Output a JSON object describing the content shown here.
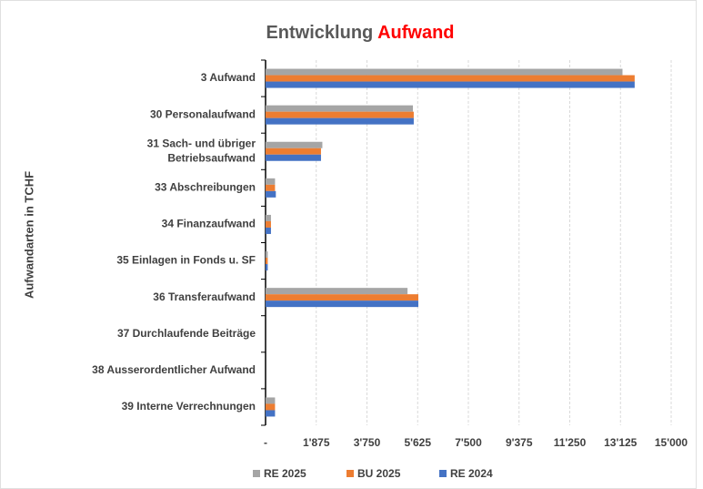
{
  "chart_data": {
    "type": "bar",
    "orientation": "horizontal",
    "title": "Entwicklung",
    "title_highlight": "Aufwand",
    "title_highlight_color": "#ff0000",
    "y_label": "Aufwandarten in TCHF",
    "categories": [
      "3 Aufwand",
      "30 Personalaufwand",
      "31 Sach- und übriger\nBetriebsaufwand",
      "33 Abschreibungen",
      "34 Finanzaufwand",
      "35 Einlagen in Fonds u. SF",
      "36 Transferaufwand",
      "37 Durchlaufende Beiträge",
      "38 Ausserordentlicher Aufwand",
      "39 Interne Verrechnungen"
    ],
    "series": [
      {
        "name": "RE 2025",
        "color": "#a5a5a5",
        "values": [
          13200,
          5450,
          2100,
          350,
          200,
          80,
          5250,
          0,
          0,
          350
        ]
      },
      {
        "name": "BU 2025",
        "color": "#ed7d31",
        "values": [
          13650,
          5480,
          2050,
          350,
          200,
          80,
          5650,
          0,
          0,
          350
        ]
      },
      {
        "name": "RE 2024",
        "color": "#4472c4",
        "values": [
          13650,
          5480,
          2050,
          380,
          200,
          80,
          5650,
          0,
          0,
          350
        ]
      }
    ],
    "xlim": [
      0,
      15000
    ],
    "xticks": [
      {
        "value": 0,
        "label": "-"
      },
      {
        "value": 1875,
        "label": "1'875"
      },
      {
        "value": 3750,
        "label": "3'750"
      },
      {
        "value": 5625,
        "label": "5'625"
      },
      {
        "value": 7500,
        "label": "7'500"
      },
      {
        "value": 9375,
        "label": "9'375"
      },
      {
        "value": 11250,
        "label": "11'250"
      },
      {
        "value": 13125,
        "label": "13'125"
      },
      {
        "value": 15000,
        "label": "15'000"
      }
    ],
    "grid": true,
    "legend": "bottom"
  }
}
